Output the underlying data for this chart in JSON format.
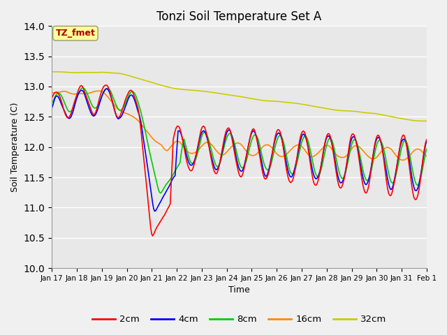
{
  "title": "Tonzi Soil Temperature Set A",
  "xlabel": "Time",
  "ylabel": "Soil Temperature (C)",
  "ylim": [
    10.0,
    14.0
  ],
  "yticks": [
    10.0,
    10.5,
    11.0,
    11.5,
    12.0,
    12.5,
    13.0,
    13.5,
    14.0
  ],
  "label_box_text": "TZ_fmet",
  "label_box_color": "#ffff99",
  "label_box_text_color": "#aa0000",
  "legend_labels": [
    "2cm",
    "4cm",
    "8cm",
    "16cm",
    "32cm"
  ],
  "legend_colors": [
    "#ff0000",
    "#0000ff",
    "#00cc00",
    "#ff8800",
    "#cccc00"
  ],
  "bg_color": "#e8e8e8",
  "figsize": [
    6.4,
    4.8
  ],
  "dpi": 100
}
